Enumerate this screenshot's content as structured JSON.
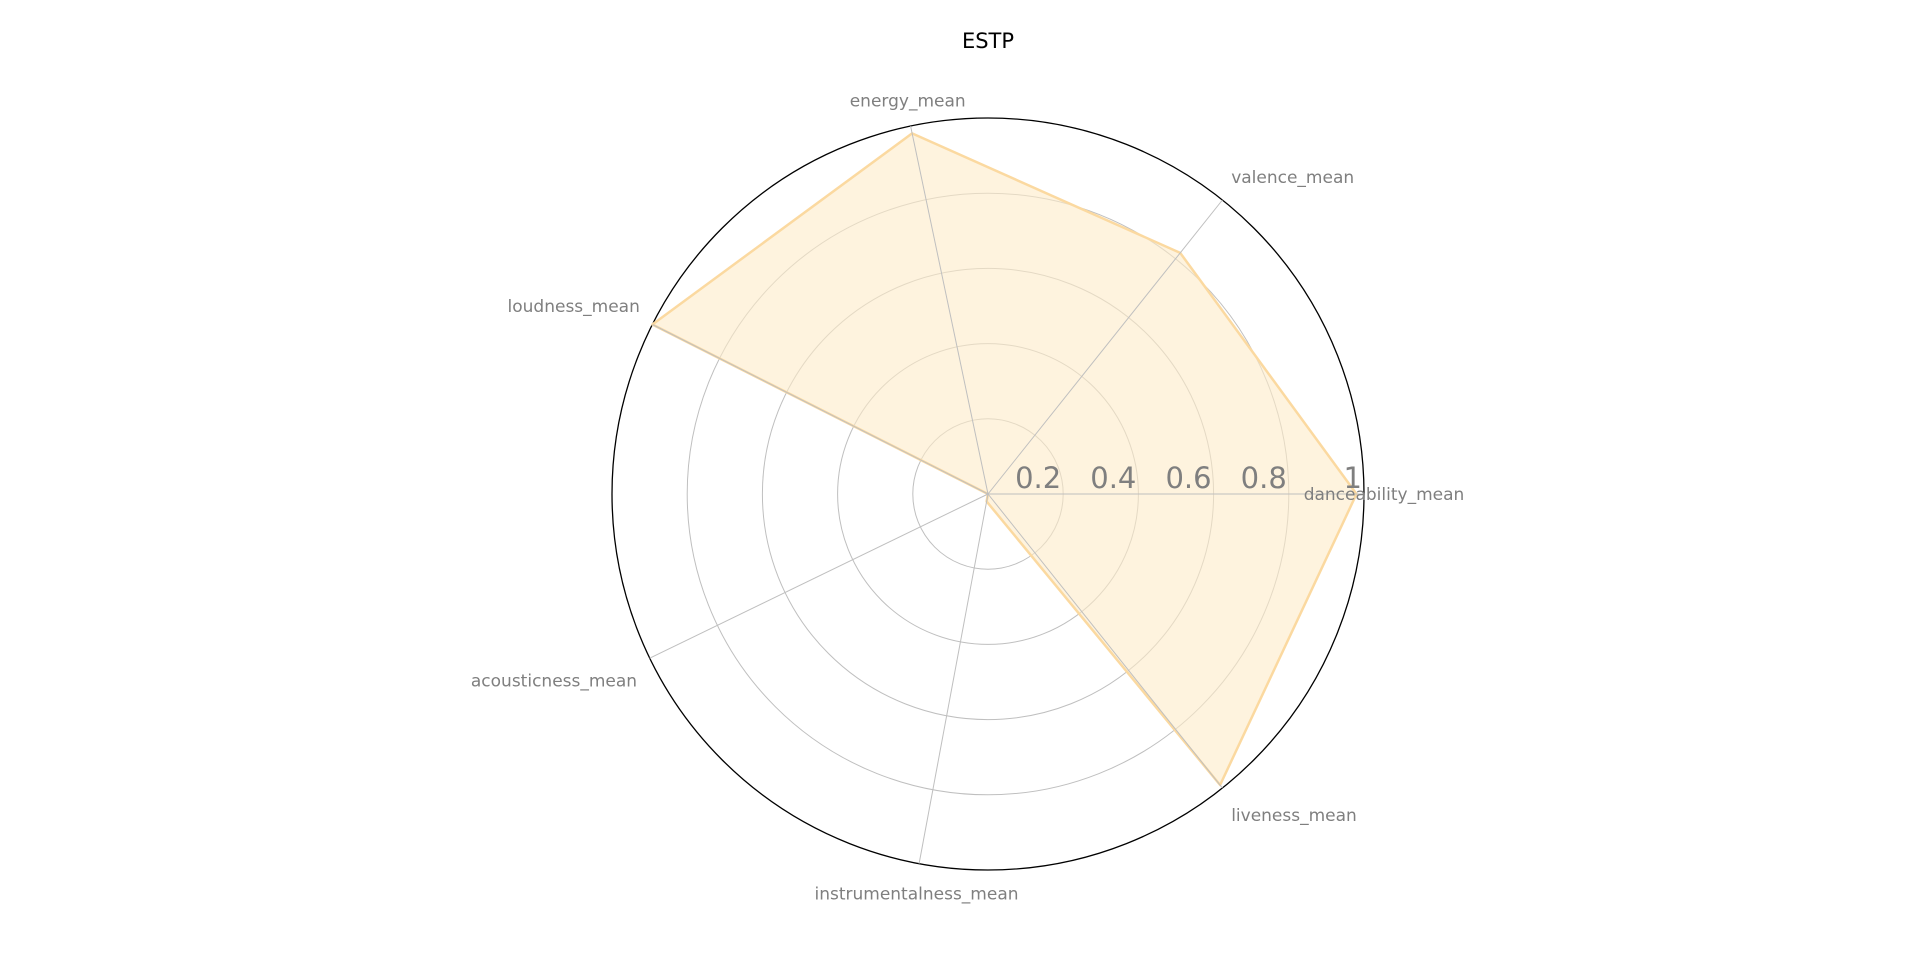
{
  "chart_data": {
    "type": "radar",
    "title": "ESTP",
    "categories": [
      "danceability_mean",
      "valence_mean",
      "energy_mean",
      "loudness_mean",
      "acousticness_mean",
      "instrumentalness_mean",
      "liveness_mean"
    ],
    "series": [
      {
        "values": [
          0.98,
          0.82,
          0.98,
          1.0,
          0.0,
          0.02,
          0.99
        ]
      }
    ],
    "rlim": [
      0,
      1
    ],
    "rticks": [
      0.2,
      0.4,
      0.6,
      0.8,
      1.0
    ],
    "rtick_labels": [
      "0.2",
      "0.4",
      "0.6",
      "0.8",
      "1"
    ],
    "grid": true,
    "legend": "none",
    "colors": {
      "fill": "#fdebc8",
      "stroke": "#fbd9a0",
      "grid": "#bfbfbf",
      "outer": "#000000",
      "labels": "#7f7f7f",
      "title": "#000000"
    }
  }
}
